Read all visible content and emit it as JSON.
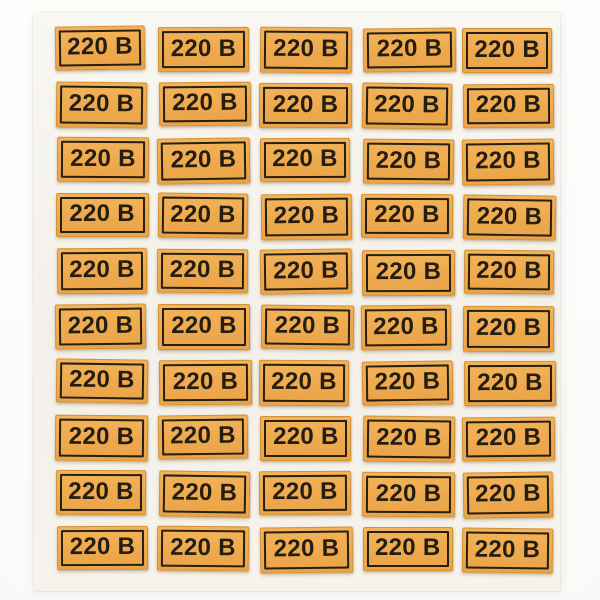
{
  "product": {
    "label_text": "220 В",
    "sticker_count": 50,
    "grid_rows": 10,
    "grid_columns": 5
  },
  "colors": {
    "sticker_fill": "#EEA94D",
    "sticker_fill_light": "#F4B459",
    "sticker_cut_edge": "#CE8E30",
    "frame_and_text": "#241D11",
    "sheet_background": "#F5F2EB",
    "photo_background": "#FCFCFA"
  }
}
